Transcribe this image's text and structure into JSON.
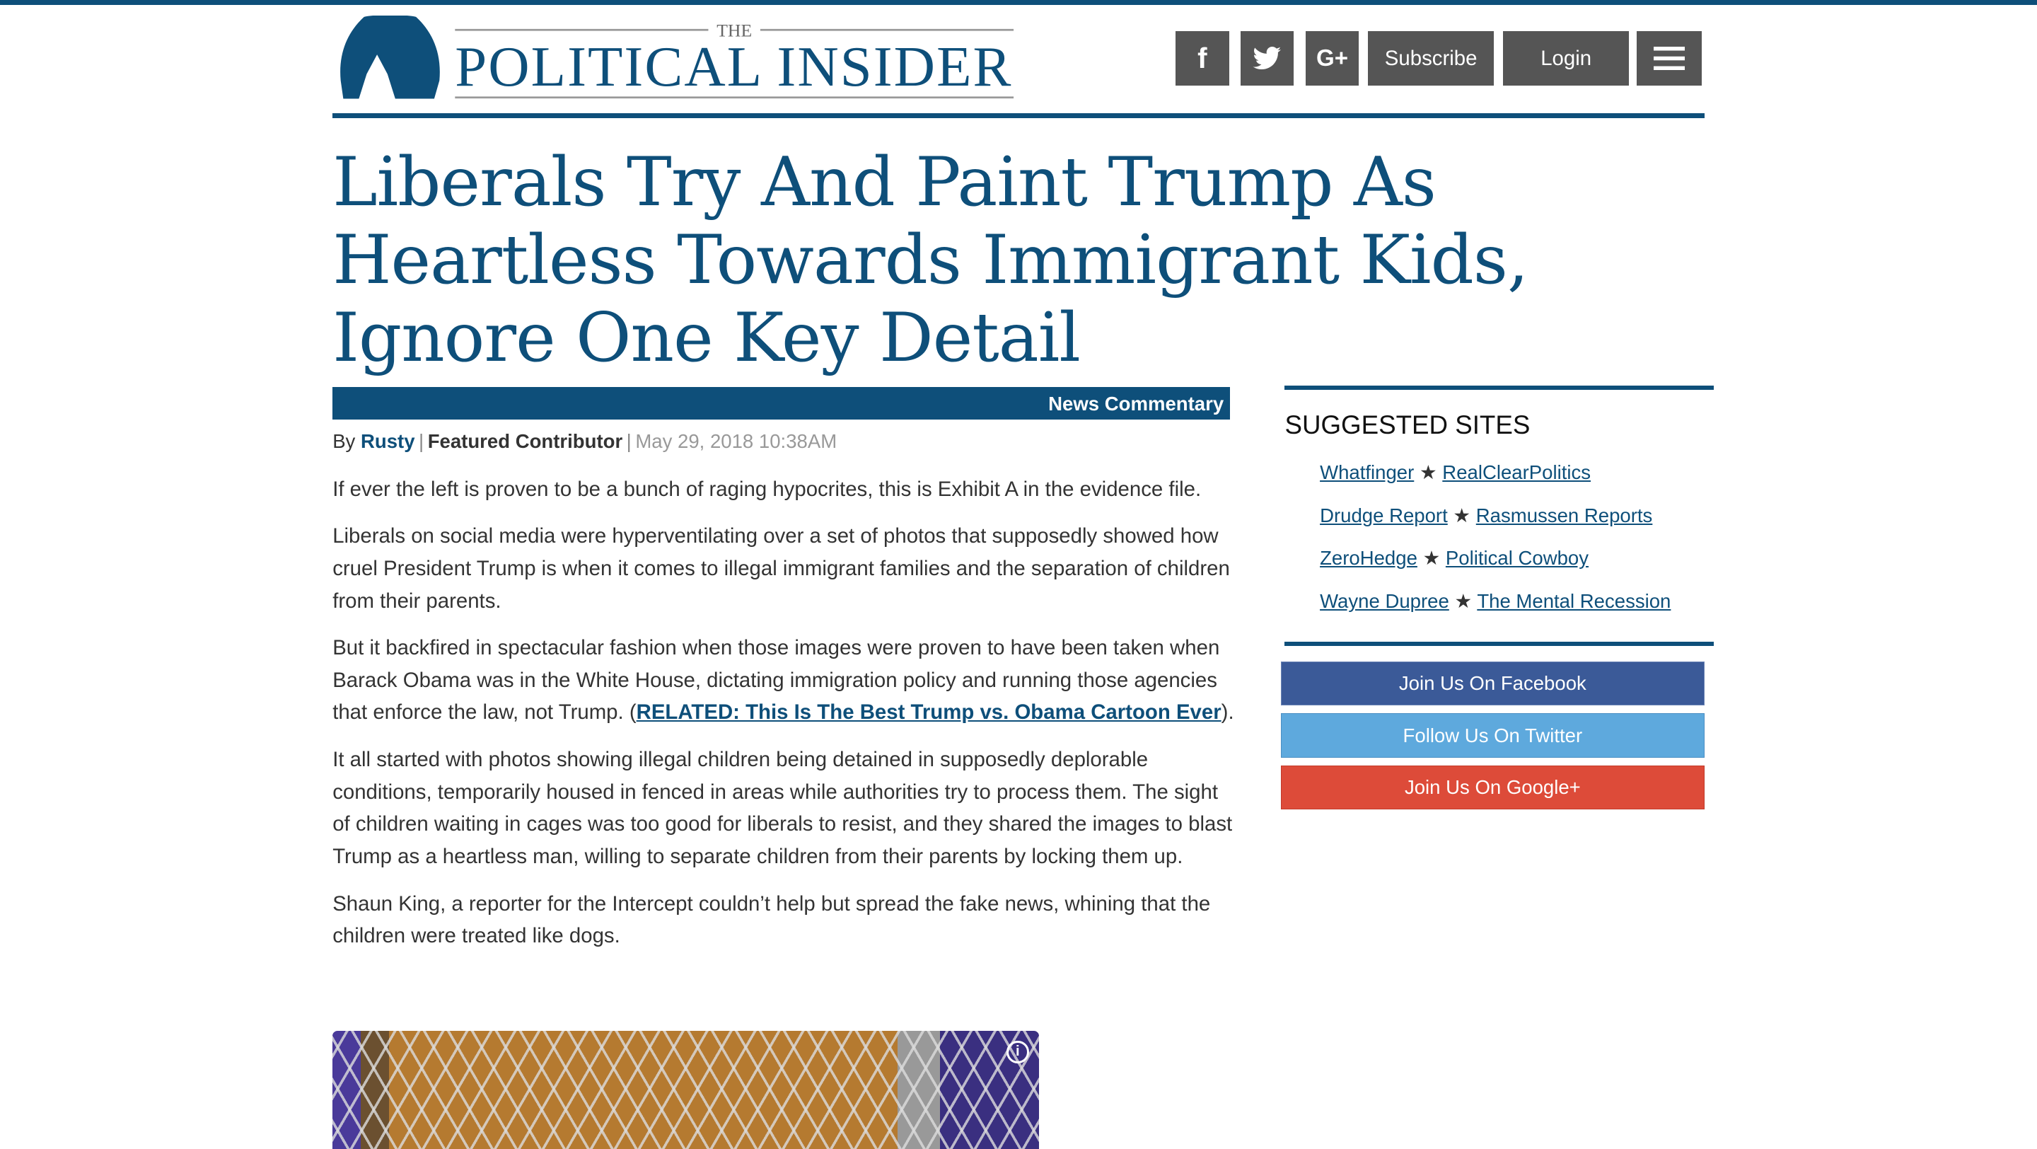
{
  "site": {
    "logo_small": "THE",
    "logo_main": "POLITICAL INSIDER",
    "brand_color": "#0e4f7a"
  },
  "header": {
    "facebook_icon": "facebook-icon",
    "twitter_icon": "twitter-icon",
    "googleplus_label": "G+",
    "subscribe": "Subscribe",
    "login": "Login",
    "menu_icon": "hamburger-menu-icon"
  },
  "article": {
    "title": "Liberals Try And Paint Trump As Heartless Towards Immigrant Kids, Ignore One Key Detail",
    "category": "News Commentary",
    "by": "By",
    "author": "Rusty",
    "role": "Featured Contributor",
    "date": "May 29, 2018 10:38AM",
    "p1": "If ever the left is proven to be a bunch of raging hypocrites, this is Exhibit A in the evidence file.",
    "p2": "Liberals on social media were hyperventilating over a set of photos that supposedly showed how cruel President Trump is when it comes to illegal immigrant families and the separation of children from their parents.",
    "p3_pre": "But it backfired in spectacular fashion when those images were proven to have been taken when Barack Obama was in the White House, dictating immigration policy and running those agencies that enforce the law, not Trump. (",
    "p3_link": "RELATED: This Is The Best Trump vs. Obama Cartoon Ever",
    "p3_post": ").",
    "p4": "It all started with photos showing illegal children being detained in supposedly deplorable conditions, temporarily housed in fenced in areas while authorities try to process them. The sight of children waiting in cages was too good for liberals to resist, and they shared the images to blast Trump as a heartless man, willing to separate children from their parents by locking them up.",
    "p5": "Shaun King, a reporter for the Intercept couldn’t help but spread the fake news, whining that the children were treated like dogs.",
    "info_icon": "i"
  },
  "sidebar": {
    "heading": "SUGGESTED SITES",
    "star": "★",
    "rows": [
      [
        "Whatfinger",
        "RealClearPolitics"
      ],
      [
        "Drudge Report",
        "Rasmussen Reports"
      ],
      [
        "ZeroHedge",
        "Political Cowboy"
      ],
      [
        "Wayne Dupree",
        "The Mental Recession"
      ]
    ],
    "buttons": [
      {
        "label": "Join Us On Facebook",
        "color": "#3b5a98"
      },
      {
        "label": "Follow Us On Twitter",
        "color": "#5ea9dd"
      },
      {
        "label": "Join Us On Google+",
        "color": "#dd4b39"
      }
    ]
  }
}
